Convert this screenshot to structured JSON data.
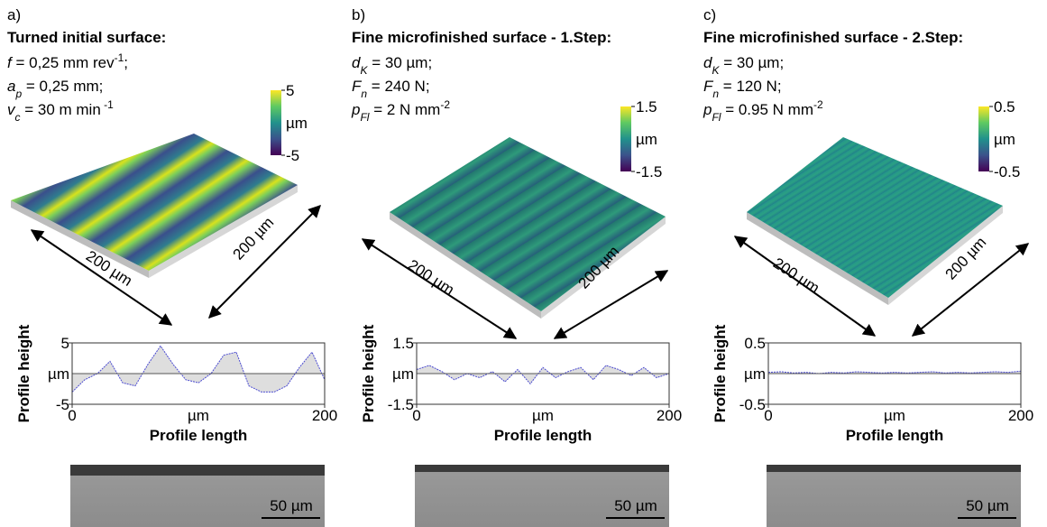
{
  "panels": [
    {
      "label": "a)",
      "title": "Turned initial surface:",
      "params": [
        {
          "var": "f",
          "text": " = 0,25 mm rev",
          "sup": "-1",
          "end": ";"
        },
        {
          "var": "a",
          "sub": "p",
          "text": " = 0,25 mm;"
        },
        {
          "var": "v",
          "sub": "c",
          "text": " = 30 m min",
          "sup": " -1"
        }
      ],
      "colorbar": {
        "ticks": [
          5,
          -5
        ],
        "unit": "µm"
      },
      "dimensions": [
        "200 µm",
        "200 µm"
      ],
      "profile": {
        "ylabel": "Profile height",
        "xlabel": "Profile length",
        "ylim": [
          -5,
          5
        ],
        "yticks": [
          -5,
          5
        ],
        "y_unit": "µm",
        "xlim": [
          0,
          200
        ],
        "xticks": [
          0,
          200
        ],
        "x_unit": "µm",
        "x": [
          0,
          10,
          20,
          30,
          40,
          50,
          60,
          70,
          80,
          90,
          100,
          110,
          120,
          130,
          140,
          150,
          160,
          170,
          180,
          190,
          200
        ],
        "values": [
          -3,
          -1,
          0,
          2,
          -1.5,
          -2,
          1.5,
          4.5,
          1.5,
          -1,
          -1.5,
          0,
          3,
          3.5,
          -2,
          -3,
          -3,
          -2,
          1,
          3.5,
          -1
        ]
      },
      "scale_bar": "50 µm"
    },
    {
      "label": "b)",
      "title": "Fine microfinished surface - 1.Step:",
      "params": [
        {
          "var": "d",
          "sub": "K",
          "text": " = 30 µm;"
        },
        {
          "var": "F",
          "sub": "n",
          "text": " = 240 N;"
        },
        {
          "var": "p",
          "sub": "Fl",
          "text": " = 2 N mm",
          "sup": "-2"
        }
      ],
      "colorbar": {
        "ticks": [
          1.5,
          -1.5
        ],
        "unit": "µm"
      },
      "dimensions": [
        "200 µm",
        "200 µm"
      ],
      "profile": {
        "ylabel": "Profile height",
        "xlabel": "Profile length",
        "ylim": [
          -1.5,
          1.5
        ],
        "yticks": [
          -1.5,
          1.5
        ],
        "y_unit": "µm",
        "xlim": [
          0,
          200
        ],
        "xticks": [
          0,
          200
        ],
        "x_unit": "µm",
        "x": [
          0,
          10,
          20,
          30,
          40,
          50,
          60,
          70,
          80,
          90,
          100,
          110,
          120,
          130,
          140,
          150,
          160,
          170,
          180,
          190,
          200
        ],
        "values": [
          0.2,
          0.4,
          0.1,
          -0.3,
          0,
          -0.2,
          0.1,
          -0.4,
          0.2,
          -0.5,
          0.3,
          -0.2,
          0.1,
          0.3,
          -0.3,
          0.4,
          0.2,
          -0.1,
          0.3,
          -0.2,
          0
        ]
      },
      "scale_bar": "50 µm"
    },
    {
      "label": "c)",
      "title": "Fine microfinished surface - 2.Step:",
      "params": [
        {
          "var": "d",
          "sub": "K",
          "text": " = 30 µm;"
        },
        {
          "var": "F",
          "sub": "n",
          "text": " = 120 N;"
        },
        {
          "var": "p",
          "sub": "Fl",
          "text": " = 0.95 N mm",
          "sup": "-2"
        }
      ],
      "colorbar": {
        "ticks": [
          0.5,
          -0.5
        ],
        "unit": "µm"
      },
      "dimensions": [
        "200 µm",
        "200 µm"
      ],
      "profile": {
        "ylabel": "Profile height",
        "xlabel": "Profile length",
        "ylim": [
          -0.5,
          0.5
        ],
        "yticks": [
          -0.5,
          0.5
        ],
        "y_unit": "µm",
        "xlim": [
          0,
          200
        ],
        "xticks": [
          0,
          200
        ],
        "x_unit": "µm",
        "x": [
          0,
          10,
          20,
          30,
          40,
          50,
          60,
          70,
          80,
          90,
          100,
          110,
          120,
          130,
          140,
          150,
          160,
          170,
          180,
          190,
          200
        ],
        "values": [
          0.02,
          0.03,
          0.01,
          0.02,
          0,
          0.02,
          0.01,
          0.03,
          0.02,
          0.01,
          0.02,
          0.01,
          0.02,
          0.03,
          0.01,
          0.02,
          0.01,
          0.02,
          0.03,
          0.02,
          0.04
        ]
      },
      "scale_bar": "50 µm"
    }
  ]
}
